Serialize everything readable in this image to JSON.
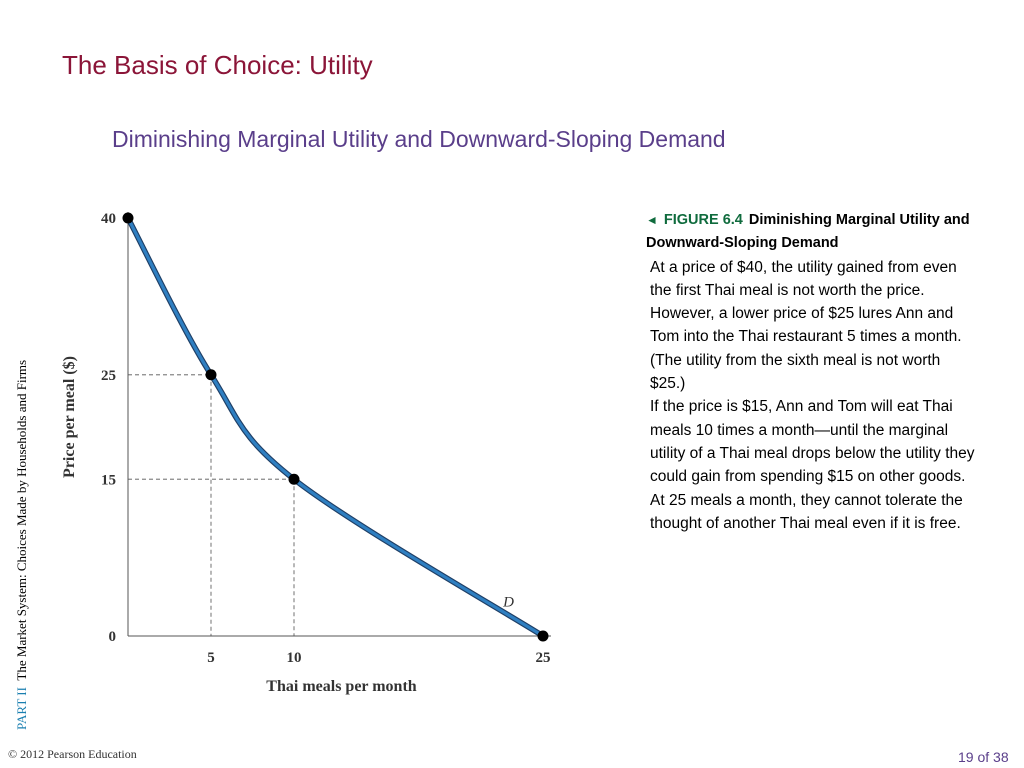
{
  "slide": {
    "title": "The Basis of Choice: Utility",
    "subtitle": "Diminishing Marginal Utility and Downward-Sloping Demand",
    "side_part": "PART  II",
    "side_text": "The Market System: Choices Made by Households and Firms",
    "copyright": "© 2012 Pearson Education",
    "page": "19 of 38"
  },
  "caption": {
    "arrow_icon": "◄",
    "figure_label": "FIGURE 6.4",
    "figure_title": "Diminishing Marginal Utility and Downward-Sloping Demand",
    "paragraphs": [
      "At a price of $40, the utility gained from even the first Thai meal is not worth the price.",
      "However, a lower price of $25 lures Ann and Tom into the Thai restaurant 5 times a month. (The utility from the sixth meal is not worth $25.)",
      "If the price is $15, Ann and Tom will eat Thai meals 10 times a month—until the marginal utility of a Thai meal drops below the utility they could gain from spending $15 on other goods.",
      "At 25 meals a month, they cannot tolerate the thought of another Thai meal even if it is free."
    ]
  },
  "chart_data": {
    "type": "line",
    "xlabel": "Thai meals per month",
    "ylabel": "Price per meal ($)",
    "xlim": [
      0,
      25
    ],
    "ylim": [
      0,
      40
    ],
    "x_ticks": [
      "5",
      "10",
      "25"
    ],
    "y_ticks": [
      "0",
      "15",
      "25",
      "40"
    ],
    "curve_label": "D",
    "series": [
      {
        "name": "D",
        "color": "#2f7fc1",
        "points": [
          {
            "x": 0,
            "y": 40
          },
          {
            "x": 5,
            "y": 25
          },
          {
            "x": 10,
            "y": 15
          },
          {
            "x": 25,
            "y": 0
          }
        ]
      }
    ],
    "marked_points": [
      {
        "x": 0,
        "y": 40
      },
      {
        "x": 5,
        "y": 25
      },
      {
        "x": 10,
        "y": 15
      },
      {
        "x": 25,
        "y": 0
      }
    ],
    "guide_lines": [
      {
        "x": 5,
        "y": 25
      },
      {
        "x": 10,
        "y": 15
      }
    ],
    "grid": false
  }
}
